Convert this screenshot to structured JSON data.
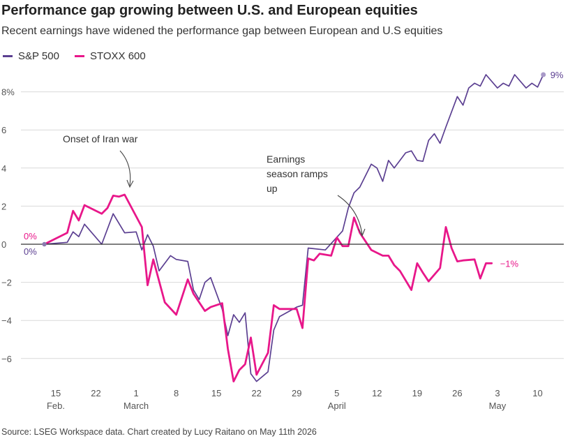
{
  "title": "Performance gap growing between U.S. and European equities",
  "subtitle": "Recent earnings have widened the performance gap between European and U.S equities",
  "source": "Source: LSEG Workspace data. Chart created by Lucy Raitano on May 11th 2026",
  "colors": {
    "sp500": "#5b3f91",
    "stoxx600": "#e8178a",
    "grid": "#d9d9d9",
    "axis": "#333333"
  },
  "chart_data": {
    "type": "line",
    "title": "Performance gap growing between U.S. and European equities",
    "subtitle": "Recent earnings have widened the performance gap between European and U.S equities",
    "xlabel": "",
    "ylabel": "",
    "ylim": [
      -7.5,
      9
    ],
    "y_ticks": [
      {
        "value": 8,
        "label": "8%"
      },
      {
        "value": 6,
        "label": "6"
      },
      {
        "value": 4,
        "label": "4"
      },
      {
        "value": 2,
        "label": "2"
      },
      {
        "value": 0,
        "label": "0"
      },
      {
        "value": -2,
        "label": "-2"
      },
      {
        "value": -4,
        "label": "-4"
      },
      {
        "value": -6,
        "label": "-6"
      }
    ],
    "x_ticks": [
      {
        "day": 15,
        "label": "15",
        "month": "Feb."
      },
      {
        "day": 22,
        "label": "22",
        "month": ""
      },
      {
        "day": 29,
        "label": "1",
        "month": "March"
      },
      {
        "day": 36,
        "label": "8",
        "month": ""
      },
      {
        "day": 43,
        "label": "15",
        "month": ""
      },
      {
        "day": 50,
        "label": "22",
        "month": ""
      },
      {
        "day": 57,
        "label": "29",
        "month": ""
      },
      {
        "day": 64,
        "label": "5",
        "month": "April"
      },
      {
        "day": 71,
        "label": "12",
        "month": ""
      },
      {
        "day": 78,
        "label": "19",
        "month": ""
      },
      {
        "day": 85,
        "label": "26",
        "month": ""
      },
      {
        "day": 92,
        "label": "3",
        "month": "May"
      },
      {
        "day": 99,
        "label": "10",
        "month": ""
      }
    ],
    "grid": true,
    "legend": "top-left",
    "series": [
      {
        "name": "S&P 500",
        "color": "#5b3f91",
        "start_label": "0%",
        "end_label": "9%",
        "x": [
          13,
          17,
          18,
          19,
          20,
          23,
          25,
          27,
          29,
          30,
          31,
          32,
          33,
          35,
          36,
          38,
          39,
          40,
          41,
          42,
          44,
          45,
          46,
          47,
          48,
          49,
          50,
          52,
          53,
          54,
          57,
          58,
          59,
          62,
          65,
          66,
          67,
          68,
          70,
          71,
          72,
          73,
          74,
          76,
          77,
          78,
          79,
          80,
          81,
          82,
          83,
          85,
          86,
          87,
          88,
          89,
          90,
          92,
          93,
          94,
          95,
          97,
          98,
          99,
          100
        ],
        "y": [
          0.0,
          0.1,
          0.65,
          0.4,
          1.05,
          0.0,
          1.6,
          0.6,
          0.65,
          -0.3,
          0.5,
          -0.1,
          -1.4,
          -0.6,
          -0.8,
          -0.9,
          -2.4,
          -2.9,
          -2.0,
          -1.75,
          -3.4,
          -4.8,
          -3.7,
          -4.1,
          -3.6,
          -6.8,
          -7.2,
          -6.7,
          -4.5,
          -3.8,
          -3.3,
          -3.2,
          -0.2,
          -0.3,
          0.7,
          1.9,
          2.7,
          3.0,
          4.2,
          4.0,
          3.3,
          4.4,
          4.0,
          4.8,
          4.9,
          4.4,
          4.35,
          5.45,
          5.8,
          5.3,
          6.15,
          7.75,
          7.3,
          8.2,
          8.45,
          8.3,
          8.9,
          8.2,
          8.45,
          8.3,
          8.9,
          8.2,
          8.45,
          8.25,
          8.9
        ]
      },
      {
        "name": "STOXX 600",
        "color": "#e8178a",
        "start_label": "0%",
        "end_label": "-1%",
        "x": [
          13,
          17,
          18,
          19,
          20,
          23,
          24,
          25,
          26,
          27,
          30,
          31,
          32,
          34,
          36,
          38,
          39,
          41,
          42,
          44,
          45,
          46,
          47,
          48,
          49,
          50,
          52,
          53,
          54,
          55,
          57,
          58,
          59,
          60,
          61,
          63,
          64,
          65,
          66,
          67,
          68,
          70,
          72,
          73,
          74,
          75,
          77,
          78,
          79,
          80,
          82,
          83,
          84,
          85,
          86,
          88,
          89,
          90,
          91
        ],
        "y": [
          0.0,
          0.6,
          1.75,
          1.25,
          2.05,
          1.6,
          1.9,
          2.55,
          2.5,
          2.6,
          0.9,
          -2.15,
          -0.8,
          -3.05,
          -3.7,
          -1.85,
          -2.6,
          -3.5,
          -3.3,
          -3.1,
          -5.5,
          -7.2,
          -6.6,
          -6.3,
          -4.9,
          -6.85,
          -5.7,
          -3.2,
          -3.4,
          -3.4,
          -3.4,
          -4.4,
          -0.75,
          -0.85,
          -0.5,
          -0.6,
          0.35,
          -0.1,
          -0.1,
          1.4,
          0.6,
          -0.3,
          -0.6,
          -0.6,
          -1.1,
          -1.4,
          -2.4,
          -1.0,
          -1.5,
          -1.95,
          -1.25,
          0.9,
          -0.2,
          -0.9,
          -0.85,
          -0.8,
          -1.8,
          -1.0,
          -1.0
        ]
      }
    ],
    "annotations": [
      {
        "text_lines": [
          "Onset of Iran war"
        ],
        "x": 27,
        "y": 2.6
      },
      {
        "text_lines": [
          "Earnings",
          "season ramps",
          "up"
        ],
        "x": 64,
        "y": -0.2
      }
    ]
  },
  "legend": {
    "items": [
      {
        "label": "S&P 500"
      },
      {
        "label": "STOXX 600"
      }
    ]
  }
}
